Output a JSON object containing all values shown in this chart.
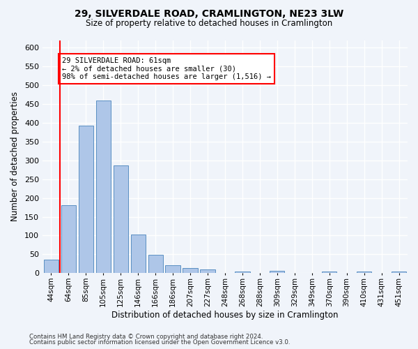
{
  "title": "29, SILVERDALE ROAD, CRAMLINGTON, NE23 3LW",
  "subtitle": "Size of property relative to detached houses in Cramlington",
  "xlabel": "Distribution of detached houses by size in Cramlington",
  "ylabel": "Number of detached properties",
  "categories": [
    "44sqm",
    "64sqm",
    "85sqm",
    "105sqm",
    "125sqm",
    "146sqm",
    "166sqm",
    "186sqm",
    "207sqm",
    "227sqm",
    "248sqm",
    "268sqm",
    "288sqm",
    "309sqm",
    "329sqm",
    "349sqm",
    "370sqm",
    "390sqm",
    "410sqm",
    "431sqm",
    "451sqm"
  ],
  "values": [
    35,
    181,
    393,
    460,
    287,
    103,
    49,
    21,
    14,
    9,
    0,
    5,
    0,
    6,
    0,
    0,
    5,
    0,
    4,
    0,
    5
  ],
  "bar_color": "#aec6e8",
  "bar_edge_color": "#5a8fc2",
  "annotation_text": "29 SILVERDALE ROAD: 61sqm\n← 2% of detached houses are smaller (30)\n98% of semi-detached houses are larger (1,516) →",
  "annotation_box_color": "white",
  "annotation_box_edge_color": "red",
  "red_line_color": "red",
  "ylim": [
    0,
    620
  ],
  "yticks": [
    0,
    50,
    100,
    150,
    200,
    250,
    300,
    350,
    400,
    450,
    500,
    550,
    600
  ],
  "footer_line1": "Contains HM Land Registry data © Crown copyright and database right 2024.",
  "footer_line2": "Contains public sector information licensed under the Open Government Licence v3.0.",
  "bg_color": "#f0f4fa",
  "grid_color": "white"
}
